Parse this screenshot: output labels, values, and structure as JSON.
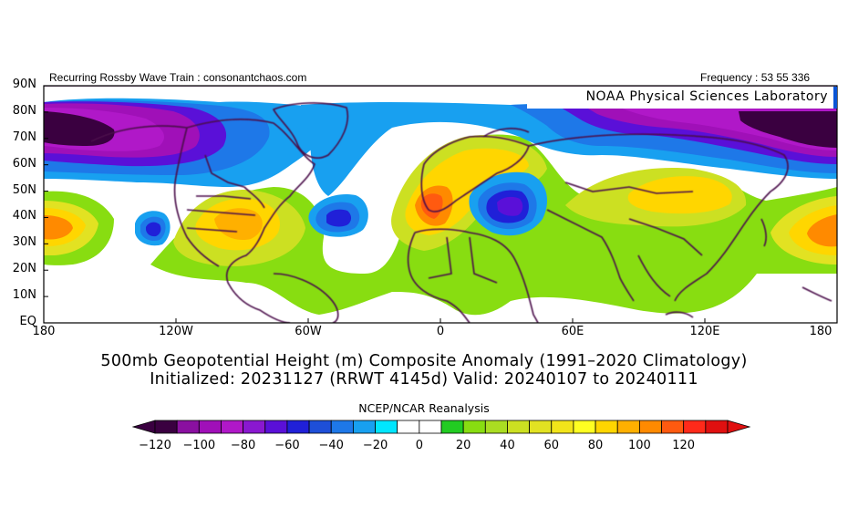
{
  "header": {
    "left_text": "Recurring Rossby Wave Train : consonantchaos.com",
    "right_text": "Frequency : 53 55 336",
    "lab_label": "NOAA Physical Sciences Laboratory"
  },
  "map": {
    "projection": "cylindrical equidistant",
    "lat_labels": [
      "90N",
      "80N",
      "70N",
      "60N",
      "50N",
      "40N",
      "30N",
      "20N",
      "10N",
      "EQ"
    ],
    "lon_labels": [
      "180",
      "120W",
      "60W",
      "0",
      "60E",
      "120E",
      "180"
    ]
  },
  "titles": {
    "line1": "500mb Geopotential Height (m) Composite Anomaly (1991–2020 Climatology)",
    "line2": "Initialized: 20231127 (RRWT 4145d) Valid: 20240107 to 20240111"
  },
  "colorbar": {
    "title": "NCEP/NCAR Reanalysis",
    "tick_labels": [
      "−120",
      "−100",
      "−80",
      "−60",
      "−40",
      "−20",
      "0",
      "20",
      "40",
      "60",
      "80",
      "100",
      "120"
    ],
    "colors": [
      "#3a0040",
      "#8a10a0",
      "#a010b8",
      "#b018c8",
      "#8a18d0",
      "#5a10d8",
      "#2020d8",
      "#1e4fd8",
      "#1e78e8",
      "#18a0f0",
      "#00e6ff",
      "#ffffff",
      "#ffffff",
      "#22cc22",
      "#88dd11",
      "#aadd22",
      "#cce022",
      "#e2e222",
      "#f2e41a",
      "#ffff22",
      "#ffd600",
      "#ffb000",
      "#ff8a00",
      "#ff5a10",
      "#ff2a1a",
      "#e01010"
    ],
    "under_color": "#3a0040",
    "over_color": "#e01010"
  }
}
